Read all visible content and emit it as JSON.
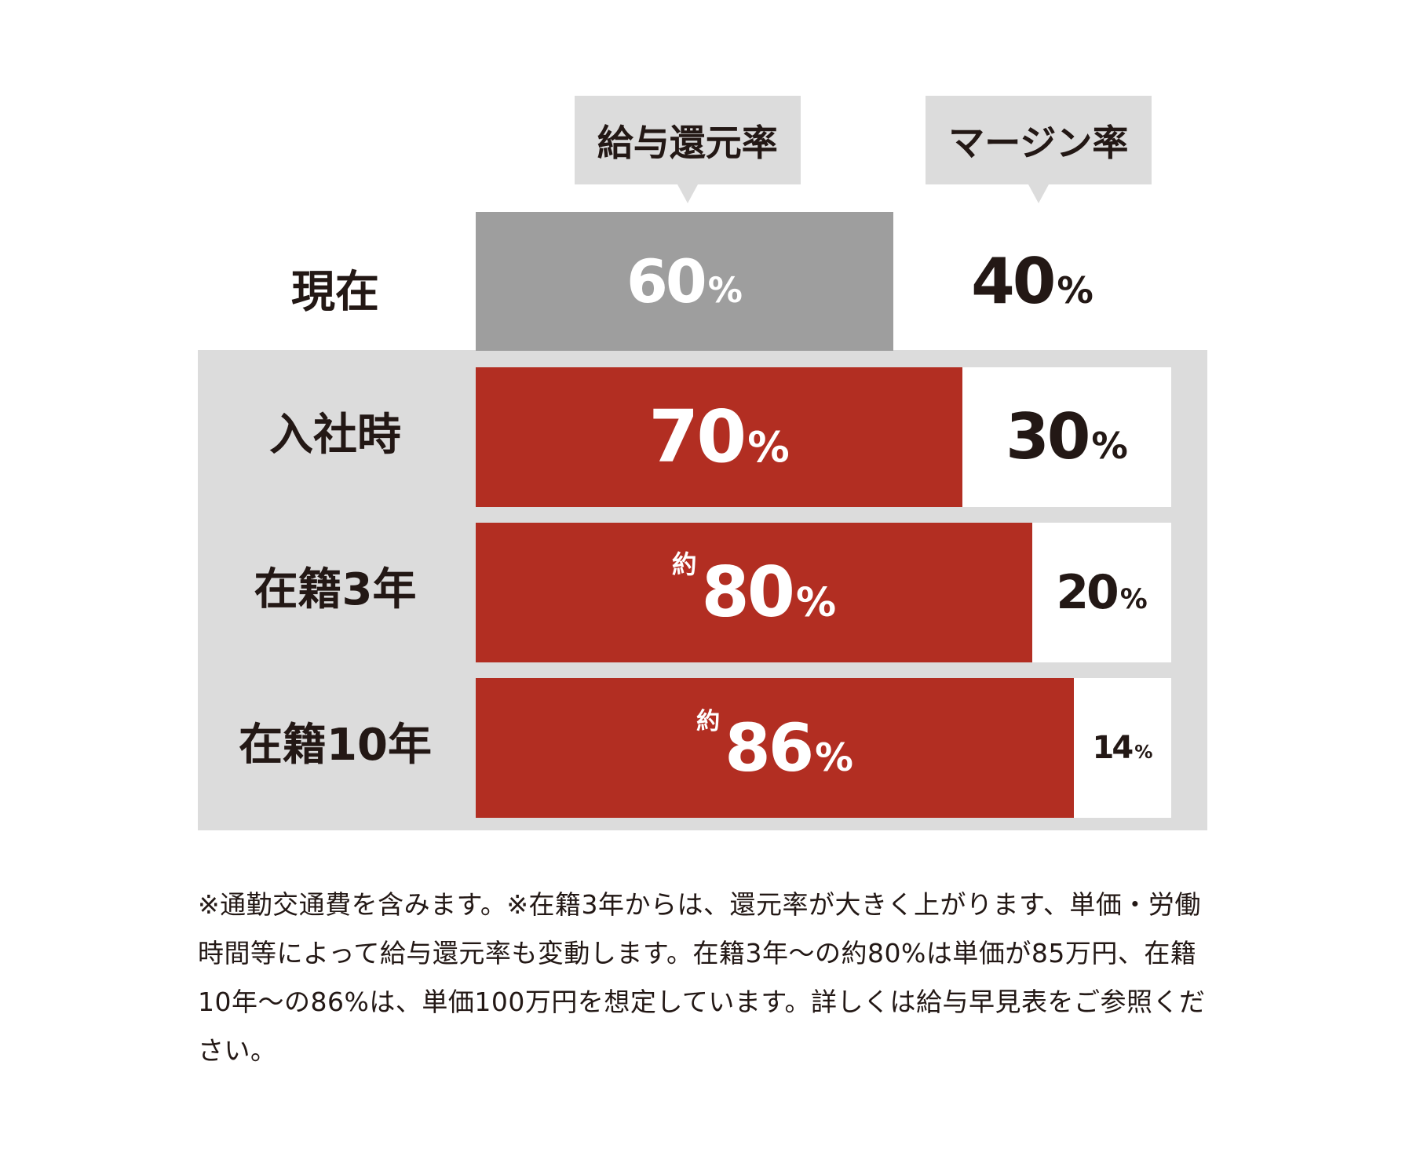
{
  "chart_data": {
    "type": "bar",
    "stacked": true,
    "orientation": "horizontal",
    "series": [
      {
        "name": "給与還元率",
        "values": [
          60,
          70,
          80,
          86
        ]
      },
      {
        "name": "マージン率",
        "values": [
          40,
          30,
          20,
          14
        ]
      }
    ],
    "categories": [
      "現在",
      "入社時",
      "在籍3年",
      "在籍10年"
    ],
    "value_labels": [
      {
        "salary_prefix": "",
        "salary": "60",
        "margin": "40"
      },
      {
        "salary_prefix": "",
        "salary": "70",
        "margin": "30"
      },
      {
        "salary_prefix": "約",
        "salary": "80",
        "margin": "20"
      },
      {
        "salary_prefix": "約",
        "salary": "86",
        "margin": "14"
      }
    ],
    "unit": "%",
    "xlim": [
      0,
      100
    ],
    "colors": {
      "current_salary": "#9e9e9e",
      "future_salary": "#b22e22",
      "margin_bg": "#ffffff",
      "panel_bg": "#dcdcdc",
      "text_dark": "#231815",
      "text_light": "#ffffff"
    }
  },
  "note": "※通勤交通費を含みます。※在籍3年からは、還元率が大きく上がります、単価・労働時間等によって給与還元率も変動します。在籍3年〜の約80%は単価が85万円、在籍10年〜の86%は、単価100万円を想定しています。詳しくは給与早見表をご参照ください。"
}
